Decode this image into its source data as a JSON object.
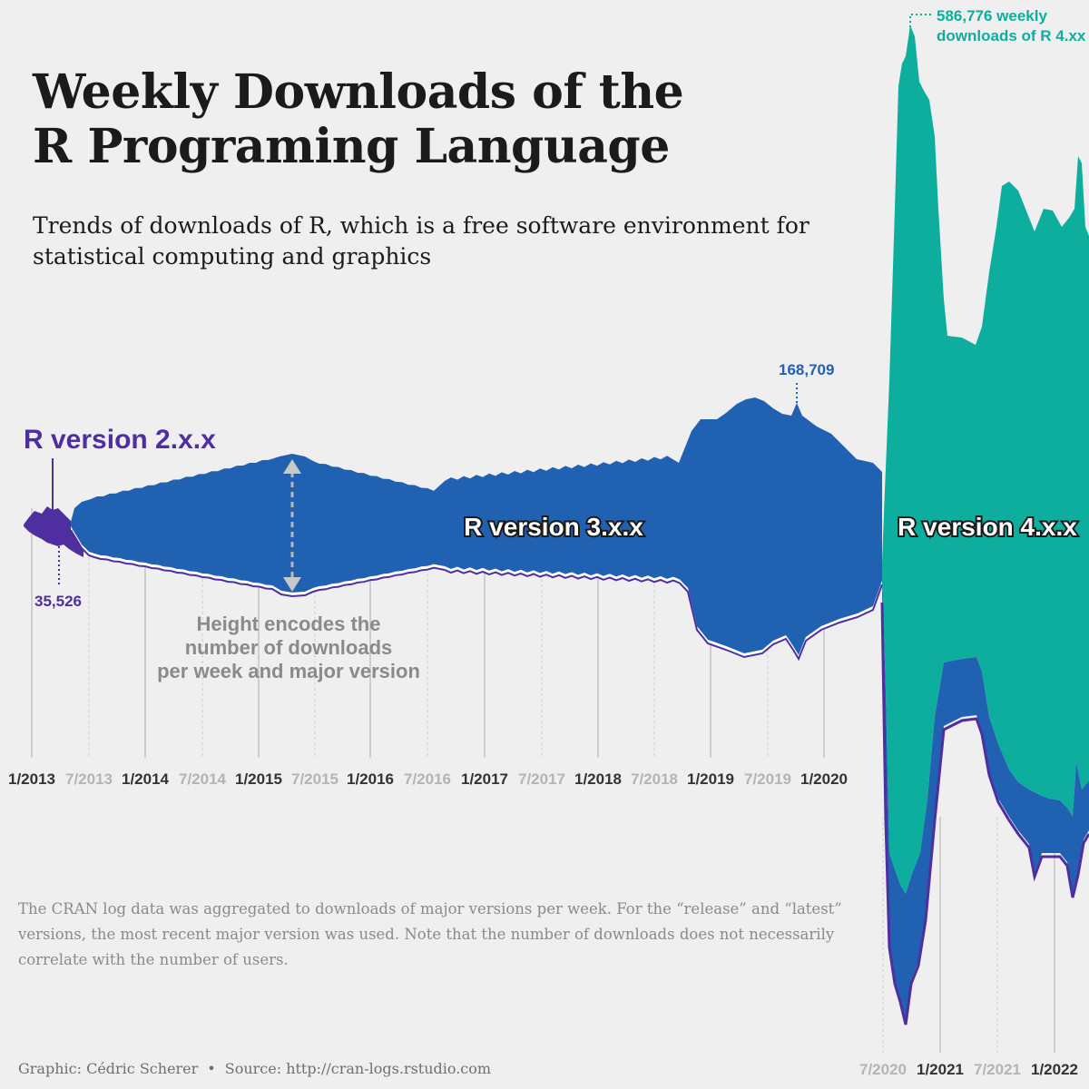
{
  "title_line1": "Weekly Downloads of the",
  "title_line2": "R Programing Language",
  "subtitle": "Trends of downloads of R, which is a free software environment for statistical computing and graphics",
  "note": "The CRAN log data was aggregated to downloads of major versions per week. For the “release” and “latest” versions, the most recent major version was used. Note that the number of downloads does not necessarily correlate with the number of users.",
  "caption": {
    "credit": "Graphic: Cédric Scherer",
    "separator": "•",
    "source": "Source: http://cran-logs.rstudio.com"
  },
  "colors": {
    "background": "#efefef",
    "r2": "#4f2ea0",
    "r3": "#2161b2",
    "r4": "#0eae9e",
    "tick_major": "#333333",
    "tick_minor": "#b4b4b4",
    "annotation": "#8a8a8a"
  },
  "chart_data": {
    "type": "area",
    "subtype": "streamgraph",
    "x_unit": "week",
    "y_unit": "weekly downloads",
    "series": [
      {
        "name": "R version 2.x.x",
        "label": "R version 2.x.x",
        "points": [
          [
            "2012-10-01",
            14000
          ],
          [
            "2012-11-15",
            30000
          ],
          [
            "2013-01-01",
            20000
          ],
          [
            "2013-02-01",
            30000
          ],
          [
            "2013-03-15",
            35526
          ],
          [
            "2013-05-01",
            28000
          ],
          [
            "2013-06-01",
            22000
          ],
          [
            "2013-07-01",
            12000
          ],
          [
            "2014-01-01",
            3000
          ],
          [
            "2014-07-01",
            2000
          ],
          [
            "2015-01-01",
            1500
          ],
          [
            "2015-07-01",
            3500
          ],
          [
            "2016-01-01",
            800
          ],
          [
            "2016-07-01",
            700
          ],
          [
            "2017-01-01",
            600
          ],
          [
            "2018-01-01",
            500
          ],
          [
            "2019-01-01",
            1500
          ],
          [
            "2019-07-01",
            2500
          ],
          [
            "2020-04-01",
            800
          ],
          [
            "2020-07-01",
            700
          ],
          [
            "2021-01-01",
            5000
          ],
          [
            "2021-07-01",
            3000
          ],
          [
            "2022-02-01",
            2500
          ]
        ]
      },
      {
        "name": "R version 3.x.x",
        "label": "R version 3.x.x",
        "points": [
          [
            "2013-04-01",
            0
          ],
          [
            "2013-05-15",
            45000
          ],
          [
            "2013-07-01",
            60000
          ],
          [
            "2014-01-01",
            82000
          ],
          [
            "2014-07-01",
            102000
          ],
          [
            "2015-01-01",
            120000
          ],
          [
            "2015-04-01",
            135000
          ],
          [
            "2015-07-01",
            118000
          ],
          [
            "2016-01-01",
            104000
          ],
          [
            "2016-07-01",
            100000
          ],
          [
            "2017-01-01",
            112000
          ],
          [
            "2017-07-01",
            115000
          ],
          [
            "2018-01-01",
            114000
          ],
          [
            "2018-07-01",
            118000
          ],
          [
            "2018-11-01",
            132000
          ],
          [
            "2019-01-01",
            155000
          ],
          [
            "2019-04-01",
            158000
          ],
          [
            "2019-06-01",
            150000
          ],
          [
            "2019-07-20",
            168709
          ],
          [
            "2019-09-01",
            158000
          ],
          [
            "2020-01-01",
            146000
          ],
          [
            "2020-03-01",
            140000
          ],
          [
            "2020-04-20",
            130000
          ],
          [
            "2020-05-01",
            60000
          ],
          [
            "2020-07-01",
            95000
          ],
          [
            "2020-10-01",
            110000
          ],
          [
            "2021-01-01",
            120000
          ],
          [
            "2021-07-01",
            95000
          ],
          [
            "2022-02-01",
            75000
          ]
        ]
      },
      {
        "name": "R version 4.x.x",
        "label": "R version 4.x.x",
        "points": [
          [
            "2020-04-20",
            0
          ],
          [
            "2020-05-15",
            320000
          ],
          [
            "2020-07-01",
            420000
          ],
          [
            "2020-09-01",
            586776
          ],
          [
            "2020-11-01",
            470000
          ],
          [
            "2021-01-01",
            400000
          ],
          [
            "2021-04-01",
            340000
          ],
          [
            "2021-07-01",
            380000
          ],
          [
            "2021-10-01",
            500000
          ],
          [
            "2022-01-01",
            470000
          ],
          [
            "2022-02-01",
            460000
          ]
        ]
      }
    ],
    "x_ticks": [
      {
        "label": "1/2013",
        "major": true
      },
      {
        "label": "7/2013",
        "major": false
      },
      {
        "label": "1/2014",
        "major": true
      },
      {
        "label": "7/2014",
        "major": false
      },
      {
        "label": "1/2015",
        "major": true
      },
      {
        "label": "7/2015",
        "major": false
      },
      {
        "label": "1/2016",
        "major": true
      },
      {
        "label": "7/2016",
        "major": false
      },
      {
        "label": "1/2017",
        "major": true
      },
      {
        "label": "7/2017",
        "major": false
      },
      {
        "label": "1/2018",
        "major": true
      },
      {
        "label": "7/2018",
        "major": false
      },
      {
        "label": "1/2019",
        "major": true
      },
      {
        "label": "7/2019",
        "major": false
      },
      {
        "label": "1/2020",
        "major": true
      },
      {
        "label": "7/2020",
        "major": false
      },
      {
        "label": "1/2021",
        "major": true
      },
      {
        "label": "7/2021",
        "major": false
      },
      {
        "label": "1/2022",
        "major": true
      }
    ],
    "annotations": {
      "min_r2": "35,526",
      "peak_r3": "168,709",
      "peak_r4_line1": "586,776 weekly",
      "peak_r4_line2": "downloads of R 4.xx",
      "height_note_line1": "Height encodes the",
      "height_note_line2": "number of downloads",
      "height_note_line3": "per week and major version"
    }
  }
}
